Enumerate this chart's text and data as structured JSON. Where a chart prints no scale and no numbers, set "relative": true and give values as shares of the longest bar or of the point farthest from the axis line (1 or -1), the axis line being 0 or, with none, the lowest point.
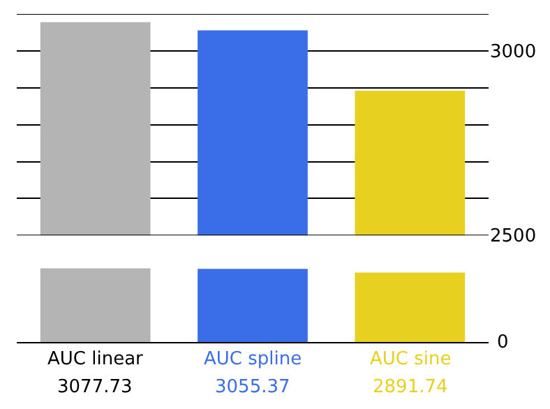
{
  "chart_data": [
    {
      "type": "bar",
      "categories": [
        "AUC linear",
        "AUC spline",
        "AUC sine"
      ],
      "values": [
        3077.73,
        3055.37,
        2891.74
      ],
      "colors": [
        "#b4b4b4",
        "#3a6ee8",
        "#e8d020"
      ],
      "ylim": [
        2500,
        3100
      ],
      "yticks": [
        2500,
        {
          "value": 2600,
          "label": null
        },
        {
          "value": 2700,
          "label": null
        },
        {
          "value": 2800,
          "label": null
        },
        {
          "value": 2900,
          "label": null
        },
        3000,
        {
          "value": 3100,
          "label": null
        }
      ],
      "grid": "y",
      "tick_labels": "y",
      "data_labels": true,
      "legend": false
    },
    {
      "type": "bar",
      "relative": true,
      "categories": [
        null,
        null,
        null
      ],
      "values": [
        1,
        0.99,
        0.94
      ],
      "colors": [
        "#b4b4b4",
        "#3a6ee8",
        "#e8d020"
      ],
      "annotations": [
        "0"
      ]
    }
  ]
}
